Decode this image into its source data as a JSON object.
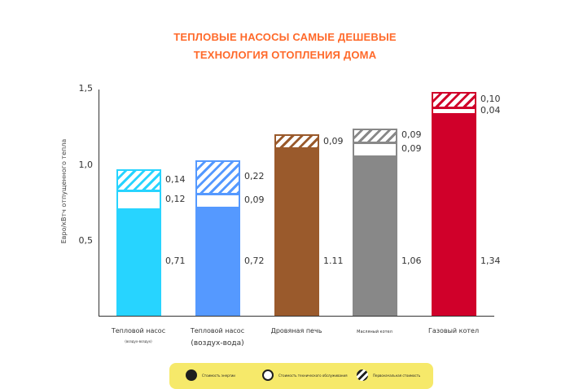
{
  "title": {
    "line1": "ТЕПЛОВЫЕ НАСОСЫ САМЫЕ ДЕШЕВЫЕ",
    "line2": "ТЕХНОЛОГИЯ ОТОПЛЕНИЯ ДОМА",
    "color": "#ff6a2b"
  },
  "axis": {
    "ylabel": "Евро/кВтч отпущенного тепла",
    "ticks": [
      "1,5",
      "1,0",
      "0,5"
    ]
  },
  "legend": {
    "energy": "Стоимость энергии",
    "maintenance": "Стоимость технического обслуживания",
    "capital": "Первоначальная стоимость"
  },
  "chart_data": {
    "type": "bar",
    "stacked": true,
    "title": "ТЕПЛОВЫЕ НАСОСЫ САМЫЕ ДЕШЕВЫЕ ТЕХНОЛОГИЯ ОТОПЛЕНИЯ ДОМА",
    "xlabel": "",
    "ylabel": "Евро/кВтч отпущенного тепла",
    "ylim": [
      0,
      1.5
    ],
    "yticks": [
      0.5,
      1.0,
      1.5
    ],
    "grid": false,
    "legend_position": "bottom",
    "categories": [
      "Тепловой насос (воздух-воздух)",
      "Тепловой насос (воздух-вода)",
      "Дровяная печь",
      "Масляный котел",
      "Газовый котел"
    ],
    "category_labels": [
      {
        "main": "Тепловой насос",
        "sub": "(воздух-воздух)"
      },
      {
        "main": "Тепловой насос",
        "sub": "(воздух-вода)"
      },
      {
        "main": "Дровяная печь",
        "sub": ""
      },
      {
        "main": "Масляный котел",
        "sub": ""
      },
      {
        "main": "Газовый котел",
        "sub": ""
      }
    ],
    "colors": [
      "#27d4ff",
      "#5599ff",
      "#9a5a2c",
      "#888888",
      "#d0002a"
    ],
    "series": [
      {
        "name": "Стоимость энергии",
        "values": [
          0.71,
          0.72,
          1.11,
          1.06,
          1.34
        ],
        "labels": [
          "0,71",
          "0,72",
          "1.11",
          "1,06",
          "1,34"
        ]
      },
      {
        "name": "Стоимость технического обслуживания",
        "values": [
          0.12,
          0.09,
          0,
          0.09,
          0.04
        ],
        "labels": [
          "0,12",
          "0,09",
          "",
          "0,09",
          "0,04"
        ]
      },
      {
        "name": "Первоначальная стоимость",
        "values": [
          0.14,
          0.22,
          0.09,
          0.09,
          0.1
        ],
        "labels": [
          "0,14",
          "0,22",
          "0,09",
          "0,09",
          "0,10"
        ]
      }
    ]
  }
}
